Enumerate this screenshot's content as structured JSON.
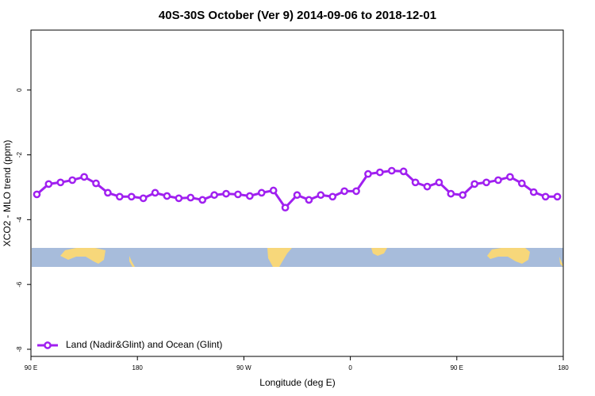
{
  "chart_data": {
    "type": "line",
    "title": "40S-30S October (Ver 9)   2014-09-06 to 2018-12-01",
    "x_label": "Longitude (deg E)",
    "y_label": "XCO2 - MLO trend (ppm)",
    "x": [
      95,
      105,
      115,
      125,
      135,
      145,
      155,
      165,
      175,
      185,
      195,
      205,
      215,
      225,
      235,
      245,
      255,
      265,
      275,
      285,
      295,
      305,
      315,
      325,
      335,
      345,
      355,
      365,
      375,
      385,
      395,
      405,
      415,
      425,
      435,
      445,
      455,
      465,
      475,
      485,
      495,
      505,
      515,
      525,
      535
    ],
    "series": [
      {
        "name": "Land (Nadir&Glint) and Ocean (Glint)",
        "color": "#a020f0",
        "values": [
          -3.22,
          -2.9,
          -2.85,
          -2.78,
          -2.68,
          -2.88,
          -3.17,
          -3.29,
          -3.29,
          -3.34,
          -3.17,
          -3.27,
          -3.34,
          -3.32,
          -3.39,
          -3.24,
          -3.2,
          -3.22,
          -3.27,
          -3.17,
          -3.1,
          -3.63,
          -3.24,
          -3.39,
          -3.24,
          -3.29,
          -3.12,
          -3.12,
          -2.59,
          -2.54,
          -2.49,
          -2.51,
          -2.85,
          -2.98,
          -2.85,
          -3.2,
          -3.24,
          -2.9,
          -2.85,
          -2.78,
          -2.68,
          -2.88,
          -3.15,
          -3.29,
          -3.29
        ]
      }
    ],
    "xlim": [
      90,
      540
    ],
    "xticks": [
      {
        "value": 90,
        "label": "90 E"
      },
      {
        "value": 180,
        "label": "180"
      },
      {
        "value": 270,
        "label": "90 W"
      },
      {
        "value": 360,
        "label": "0"
      },
      {
        "value": 450,
        "label": "90 E"
      },
      {
        "value": 540,
        "label": "180"
      }
    ],
    "ylim": [
      -8.22,
      1.85
    ],
    "yticks": [
      0,
      -2,
      -4,
      -6,
      -8
    ],
    "legend": "bottomleft"
  }
}
